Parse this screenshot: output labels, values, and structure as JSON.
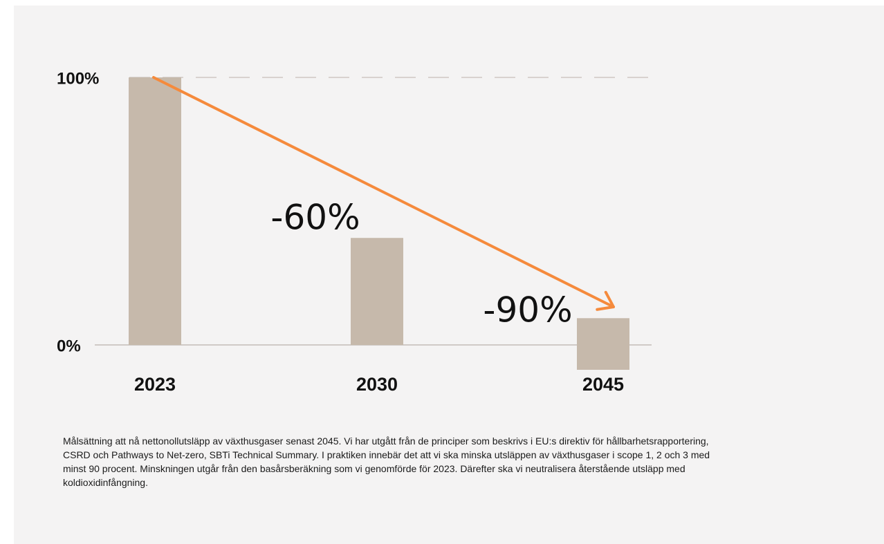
{
  "chart_data": {
    "type": "bar",
    "categories": [
      "2023",
      "2030",
      "2045"
    ],
    "values": [
      100,
      40,
      10
    ],
    "data_labels": [
      "",
      "-60%",
      "-90%"
    ],
    "y_tick_labels": [
      "0%",
      "100%"
    ],
    "ylim": [
      0,
      100
    ],
    "title": "",
    "xlabel": "",
    "ylabel": "",
    "grid": false,
    "reference_line_100": "dashed",
    "trend_arrow": {
      "from_category": "2023",
      "to_category": "2045",
      "color": "#f58a3c"
    },
    "colors": {
      "bar": "#c6b9ab",
      "arrow": "#f58a3c",
      "baseline": "#cfc9c6",
      "dash": "#d8d2cf",
      "background": "#f4f3f3"
    }
  },
  "caption": "Målsättning att nå nettonollutsläpp av växthusgaser senast 2045. Vi har utgått från de principer som beskrivs i EU:s direktiv för hållbarhetsrapportering, CSRD och Pathways to Net-zero, SBTi Technical Summary. I praktiken innebär det att vi ska minska utsläppen av växthusgaser i scope 1, 2 och 3 med minst 90 procent. Minskningen utgår från den basårsberäkning som vi genomförde för 2023. Därefter ska vi neutralisera återstående utsläpp med koldioxidinfångning."
}
